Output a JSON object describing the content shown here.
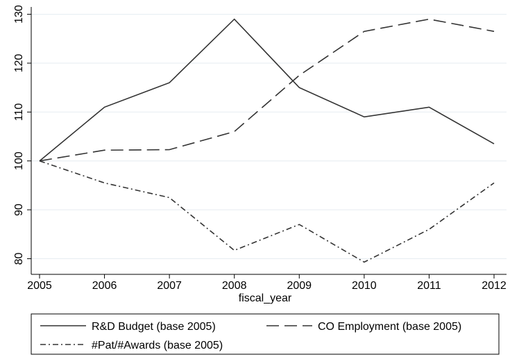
{
  "chart_data": {
    "type": "line",
    "title": "",
    "xlabel": "fiscal_year",
    "ylabel": "",
    "x": [
      2005,
      2006,
      2007,
      2008,
      2009,
      2010,
      2011,
      2012
    ],
    "x_tick_labels": [
      "2005",
      "2006",
      "2007",
      "2008",
      "2009",
      "2010",
      "2011",
      "2012"
    ],
    "xlim": [
      2005,
      2012
    ],
    "ylim": [
      78.5,
      131.5
    ],
    "y_ticks": [
      80,
      90,
      100,
      110,
      120,
      130
    ],
    "y_tick_labels": [
      "80",
      "90",
      "100",
      "110",
      "120",
      "130"
    ],
    "grid": "horizontal",
    "legend_position": "bottom",
    "series": [
      {
        "name": "R&D Budget (base 2005)",
        "style": "solid",
        "color": "#333333",
        "values": [
          100,
          111,
          116,
          129,
          115,
          109,
          111,
          103.5
        ]
      },
      {
        "name": "CO Employment (base 2005)",
        "style": "dash",
        "color": "#333333",
        "values": [
          100,
          102.2,
          102.3,
          106,
          117.5,
          126.5,
          129,
          126.5
        ]
      },
      {
        "name": "#Pat/#Awards (base 2005)",
        "style": "dashdot",
        "color": "#333333",
        "values": [
          100,
          95.5,
          92.5,
          81.7,
          87,
          79.3,
          86,
          95.5
        ]
      }
    ]
  }
}
